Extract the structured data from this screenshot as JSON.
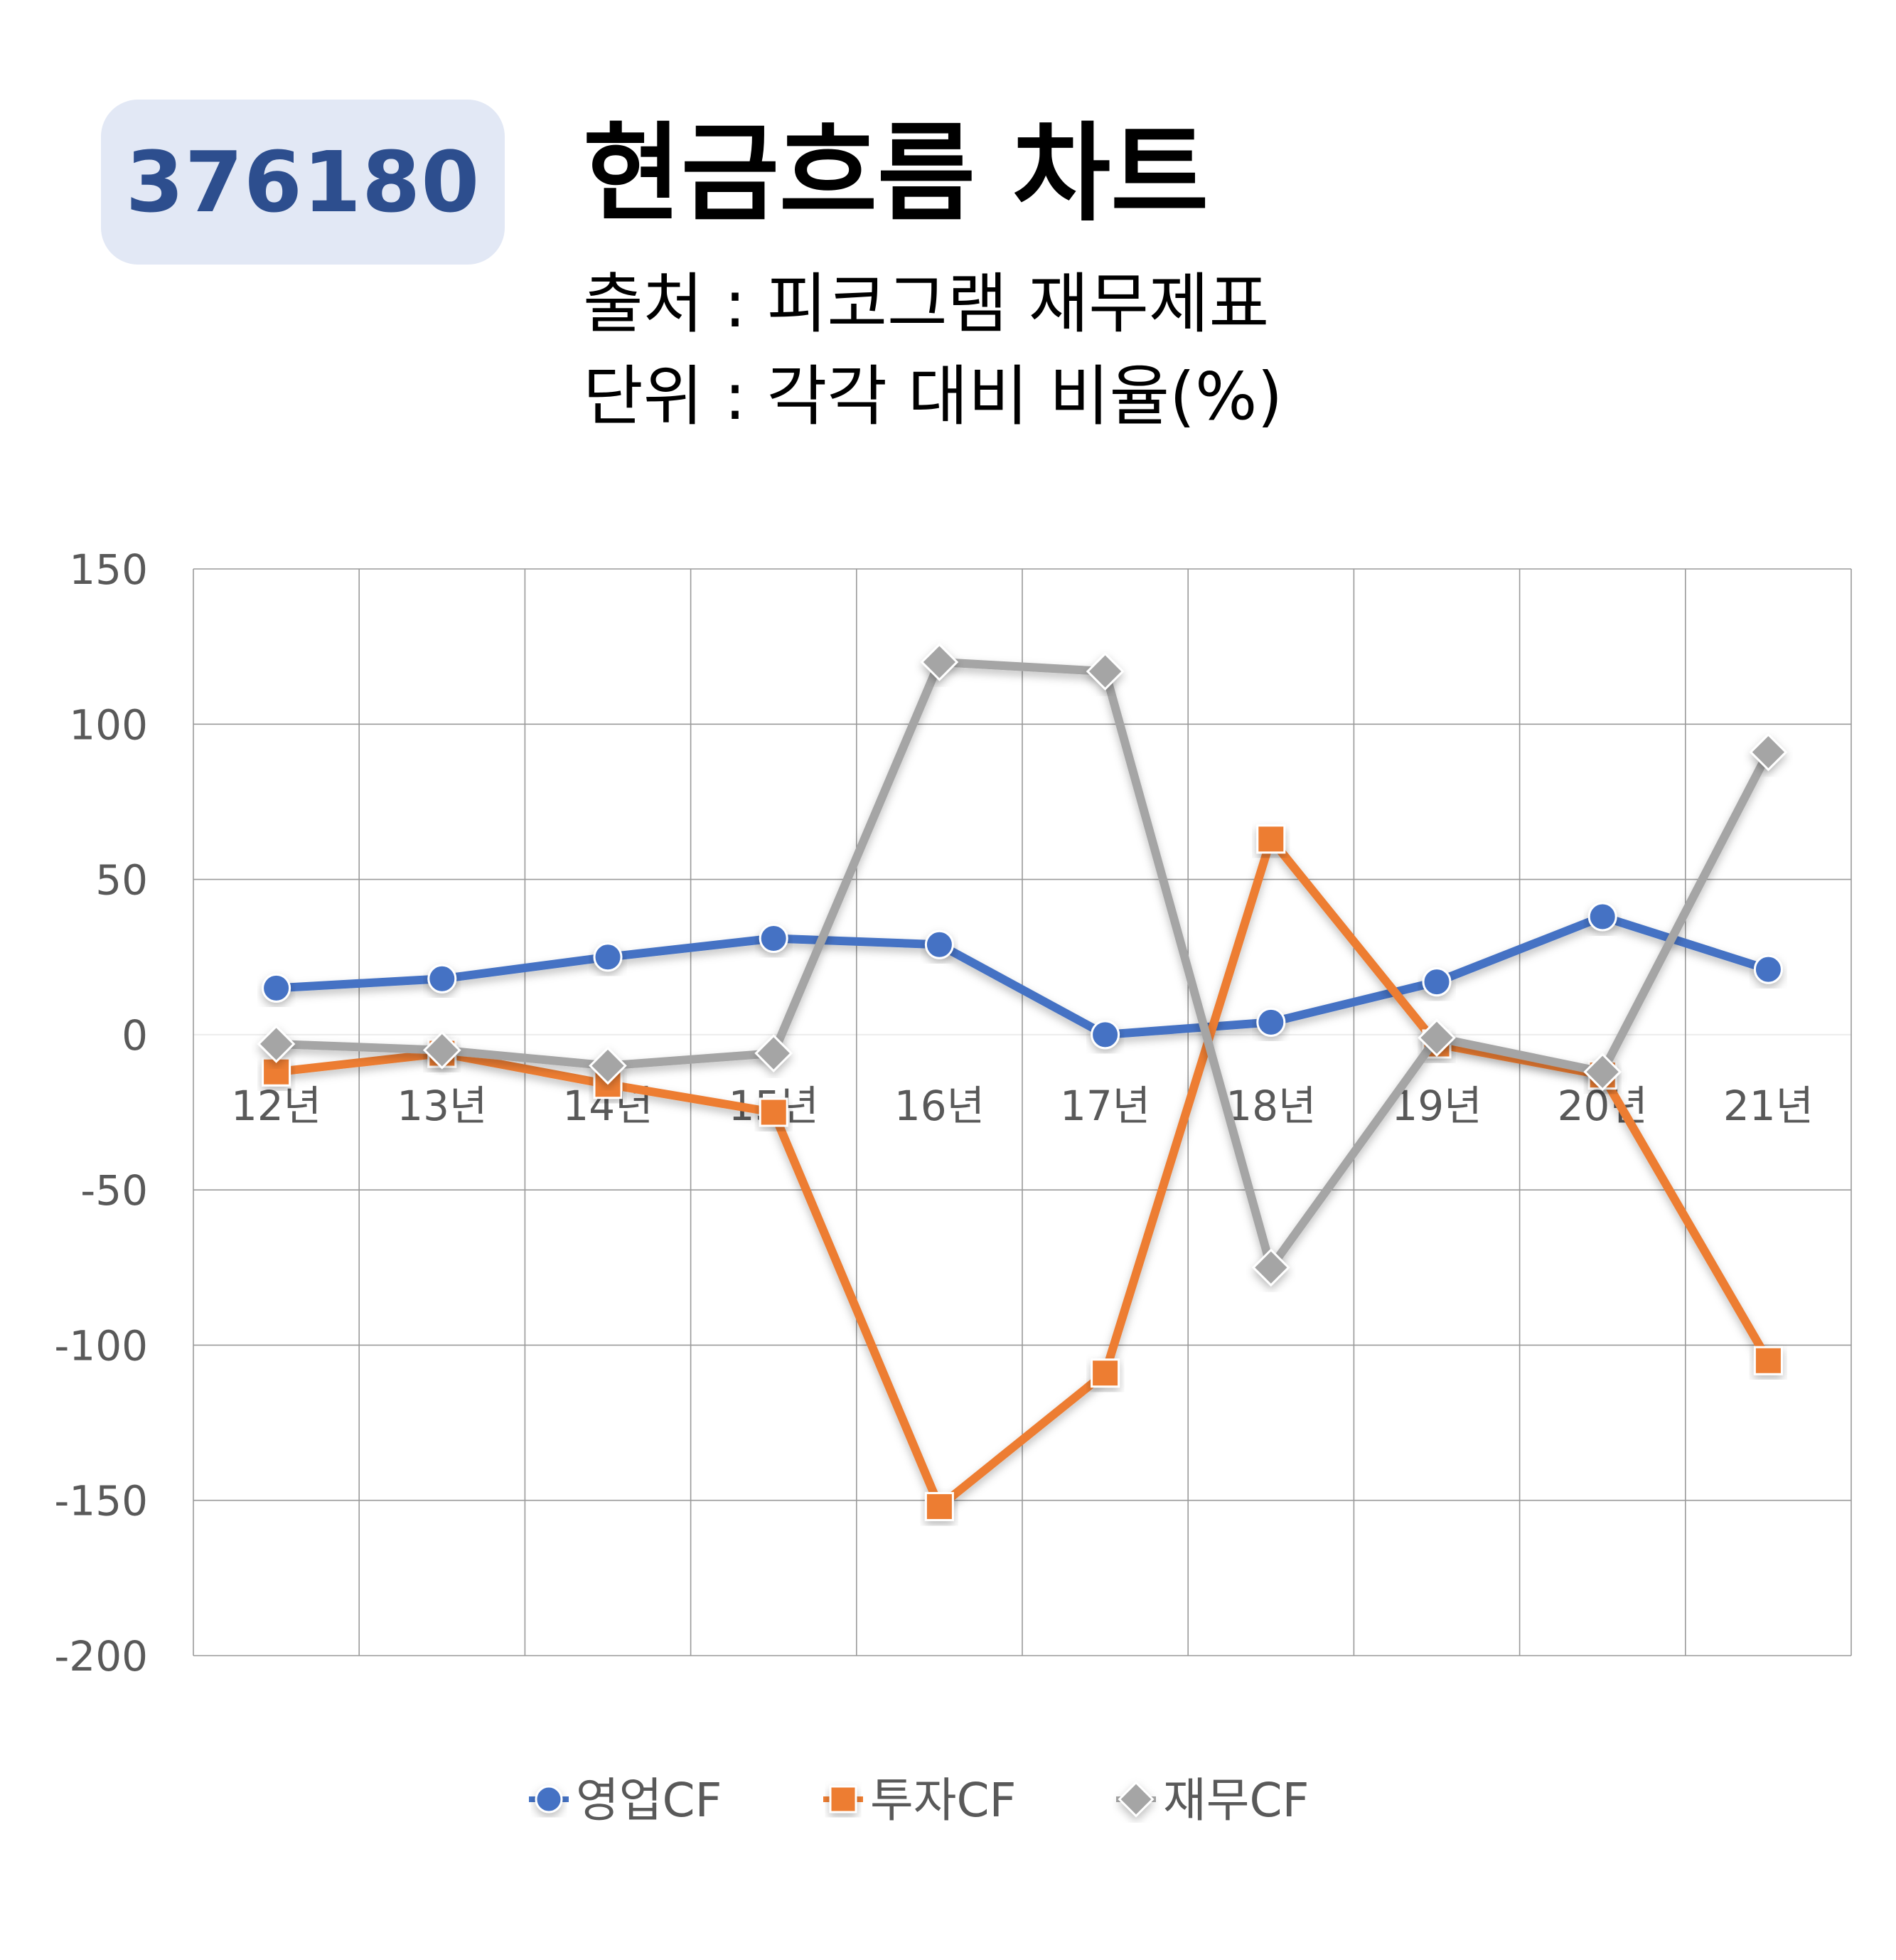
{
  "header": {
    "code_badge": "376180",
    "title": "현금흐름 차트",
    "source_line": "출처 : 피코그램 재무제표",
    "unit_line": "단위 : 각각 대비 비율(%)"
  },
  "colors": {
    "operating": "#4472c4",
    "investing": "#ed7d31",
    "financing": "#a5a5a5",
    "badge_bg": "#e2e8f5",
    "badge_text": "#2d4e8e"
  },
  "chart_data": {
    "type": "line",
    "categories": [
      "12년",
      "13년",
      "14년",
      "15년",
      "16년",
      "17년",
      "18년",
      "19년",
      "20년",
      "21년"
    ],
    "series": [
      {
        "name": "영업CF",
        "marker": "circle",
        "color": "#4472c4",
        "values": [
          15,
          18,
          25,
          31,
          29,
          0,
          4,
          17,
          38,
          21
        ]
      },
      {
        "name": "투자CF",
        "marker": "square",
        "color": "#ed7d31",
        "values": [
          -12,
          -6,
          -16,
          -25,
          -152,
          -109,
          63,
          -3,
          -13,
          -105
        ]
      },
      {
        "name": "재무CF",
        "marker": "diamond",
        "color": "#a5a5a5",
        "values": [
          -3,
          -5,
          -10,
          -6,
          120,
          117,
          -75,
          -1,
          -12,
          91
        ]
      }
    ],
    "ylim": [
      -200,
      150
    ],
    "yticks": [
      "150",
      "100",
      "50",
      "0",
      "-50",
      "-100",
      "-150",
      "-200"
    ],
    "grid": true,
    "legend": "bottom"
  }
}
